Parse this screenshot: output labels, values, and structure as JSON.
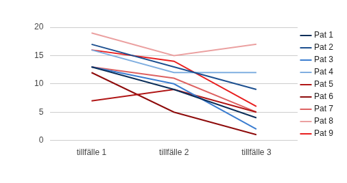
{
  "chart_data": {
    "type": "line",
    "categories": [
      "tillfälle 1",
      "tillfälle 2",
      "tillfälle 3"
    ],
    "series": [
      {
        "name": "Pat 1",
        "color": "#0b2e59",
        "values": [
          13,
          9,
          4
        ]
      },
      {
        "name": "Pat 2",
        "color": "#1c4f8f",
        "values": [
          17,
          13,
          9
        ]
      },
      {
        "name": "Pat 3",
        "color": "#3b7dd0",
        "values": [
          13,
          10,
          2
        ]
      },
      {
        "name": "Pat 4",
        "color": "#7faee0",
        "values": [
          16,
          12,
          12
        ]
      },
      {
        "name": "Pat 5",
        "color": "#b01515",
        "values": [
          7,
          9,
          5
        ]
      },
      {
        "name": "Pat 6",
        "color": "#8e0b0b",
        "values": [
          12,
          5,
          1
        ]
      },
      {
        "name": "Pat 7",
        "color": "#dd6161",
        "values": [
          13,
          11,
          5
        ]
      },
      {
        "name": "Pat 8",
        "color": "#eba0a0",
        "values": [
          19,
          15,
          17
        ]
      },
      {
        "name": "Pat 9",
        "color": "#e81e1e",
        "values": [
          16,
          14,
          6
        ]
      }
    ],
    "ylim": [
      0,
      20
    ],
    "yticks": [
      0,
      5,
      10,
      15,
      20
    ],
    "grid": true,
    "legend": "right"
  }
}
